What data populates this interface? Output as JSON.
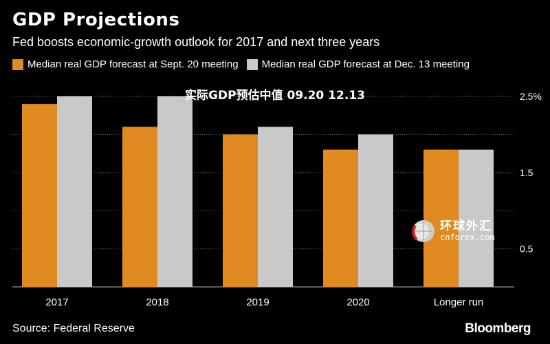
{
  "header": {
    "title": "GDP Projections",
    "subtitle": "Fed boosts economic-growth outlook for 2017 and next three years"
  },
  "overlay_text": "实际GDP预估中值 09.20 12.13",
  "footer": {
    "source": "Source: Federal Reserve",
    "brand": "Bloomberg"
  },
  "watermark": {
    "cn_text": "环球外汇",
    "url": "cnforex.com"
  },
  "colors": {
    "sept": "#e08a20",
    "dec": "#c9c9c9",
    "grid": "#666666",
    "axis": "#bbbbbb",
    "background": "#000000"
  },
  "chart_data": {
    "type": "bar",
    "title": "GDP Projections",
    "categories": [
      "2017",
      "2018",
      "2019",
      "2020",
      "Longer run"
    ],
    "series": [
      {
        "name": "Median real GDP forecast at Sept. 20 meeting",
        "values": [
          2.4,
          2.1,
          2.0,
          1.8,
          1.8
        ]
      },
      {
        "name": "Median real GDP forecast at Dec. 13 meeting",
        "values": [
          2.5,
          2.5,
          2.1,
          2.0,
          1.8
        ]
      }
    ],
    "ylim": [
      0.0,
      2.5
    ],
    "yticks": [
      {
        "value": 2.5,
        "label": "2.5%"
      },
      {
        "value": 1.5,
        "label": "1.5"
      },
      {
        "value": 0.5,
        "label": "0.5"
      }
    ],
    "gridlines_at": [
      2.5,
      2.0,
      1.5,
      1.0,
      0.5,
      0.0
    ],
    "xlabel": "",
    "ylabel": "",
    "legend_position": "top-left"
  }
}
